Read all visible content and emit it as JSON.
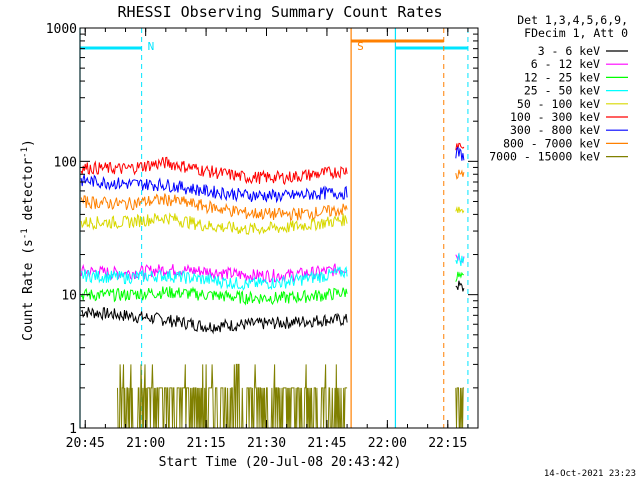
{
  "chart_data": {
    "type": "line",
    "title": "RHESSI Observing Summary Count Rates",
    "xlabel": "Start Time (20-Jul-08 20:43:42)",
    "ylabel": "Count Rate (s",
    "ylabel_sup1": "-1",
    "ylabel_mid": " detector",
    "ylabel_sup2": "-1",
    "ylabel_end": ")",
    "yscale": "log",
    "ylim": [
      1,
      1000
    ],
    "xlim": [
      "20:43:42",
      "22:22:30"
    ],
    "x_ticks": [
      "20:45",
      "21:00",
      "21:15",
      "21:30",
      "21:45",
      "22:00",
      "22:15"
    ],
    "y_ticks": [
      "1",
      "10",
      "100",
      "1000"
    ],
    "legend_header": [
      "Det 1,3,4,5,6,9,",
      "FDecim 1, Att 0"
    ],
    "legend_position": "right",
    "annotations": [
      {
        "label": "N",
        "color": "#00e5ff",
        "time": "20:59"
      },
      {
        "label": "S",
        "color": "#ff8000",
        "time": "21:51"
      }
    ],
    "night_intervals": [
      [
        "20:43:42",
        "20:59"
      ],
      [
        "22:02",
        "22:20"
      ]
    ],
    "saa_interval": [
      "21:51",
      "22:14"
    ],
    "series": [
      {
        "name": "3 - 6 keV",
        "color": "#000000",
        "segments": [
          {
            "x": [
              "20:44",
              "20:55",
              "21:05",
              "21:15",
              "21:25",
              "21:35",
              "21:45",
              "21:50"
            ],
            "y": [
              7.5,
              7,
              6.5,
              5.8,
              6,
              6.2,
              6.5,
              6.5
            ]
          },
          {
            "x": [
              "22:17",
              "22:19"
            ],
            "y": [
              12,
              11
            ]
          }
        ]
      },
      {
        "name": "6 - 12 keV",
        "color": "#ff00ff",
        "segments": [
          {
            "x": [
              "20:44",
              "20:55",
              "21:05",
              "21:15",
              "21:25",
              "21:35",
              "21:45",
              "21:50"
            ],
            "y": [
              15,
              14.5,
              15.5,
              15,
              14,
              14,
              15,
              16
            ]
          },
          {
            "x": [
              "22:17",
              "22:19"
            ],
            "y": [
              20,
              19
            ]
          }
        ]
      },
      {
        "name": "12 - 25 keV",
        "color": "#00ff00",
        "segments": [
          {
            "x": [
              "20:44",
              "20:55",
              "21:05",
              "21:15",
              "21:25",
              "21:35",
              "21:45",
              "21:50"
            ],
            "y": [
              10,
              10,
              10.5,
              10,
              9.5,
              9.5,
              10,
              10.5
            ]
          },
          {
            "x": [
              "22:17",
              "22:19"
            ],
            "y": [
              14,
              13
            ]
          }
        ]
      },
      {
        "name": "25 - 50 keV",
        "color": "#00ffff",
        "segments": [
          {
            "x": [
              "20:44",
              "20:55",
              "21:05",
              "21:15",
              "21:25",
              "21:35",
              "21:45",
              "21:50"
            ],
            "y": [
              14,
              13.5,
              14,
              13,
              12,
              12.5,
              14,
              15
            ]
          },
          {
            "x": [
              "22:17",
              "22:19"
            ],
            "y": [
              19,
              18
            ]
          }
        ]
      },
      {
        "name": "50 - 100 keV",
        "color": "#d8d800",
        "segments": [
          {
            "x": [
              "20:44",
              "20:55",
              "21:05",
              "21:15",
              "21:25",
              "21:35",
              "21:45",
              "21:50"
            ],
            "y": [
              35,
              35,
              38,
              33,
              31,
              32,
              35,
              37
            ]
          },
          {
            "x": [
              "22:17",
              "22:19"
            ],
            "y": [
              45,
              43
            ]
          }
        ]
      },
      {
        "name": "100 - 300 keV",
        "color": "#ff0000",
        "segments": [
          {
            "x": [
              "20:44",
              "20:55",
              "21:05",
              "21:15",
              "21:25",
              "21:35",
              "21:45",
              "21:50"
            ],
            "y": [
              90,
              88,
              98,
              85,
              76,
              76,
              82,
              86
            ]
          },
          {
            "x": [
              "22:17",
              "22:19"
            ],
            "y": [
              135,
              130
            ]
          }
        ]
      },
      {
        "name": "300 - 800 keV",
        "color": "#0000ff",
        "segments": [
          {
            "x": [
              "20:44",
              "20:55",
              "21:05",
              "21:15",
              "21:25",
              "21:35",
              "21:45",
              "21:50"
            ],
            "y": [
              72,
              68,
              67,
              60,
              56,
              55,
              58,
              58
            ]
          },
          {
            "x": [
              "22:17",
              "22:19"
            ],
            "y": [
              118,
              110
            ]
          }
        ]
      },
      {
        "name": "800 - 7000 keV",
        "color": "#ff8000",
        "segments": [
          {
            "x": [
              "20:44",
              "20:55",
              "21:05",
              "21:15",
              "21:25",
              "21:35",
              "21:45",
              "21:50"
            ],
            "y": [
              50,
              48,
              52,
              46,
              41,
              40,
              42,
              44
            ]
          },
          {
            "x": [
              "22:17",
              "22:19"
            ],
            "y": [
              80,
              78
            ]
          }
        ]
      },
      {
        "name": "7000 - 15000 keV",
        "color": "#808000",
        "segments": [
          {
            "x": [
              "20:53",
              "21:05",
              "21:20",
              "21:35",
              "21:50"
            ],
            "y": [
              1.5,
              1.8,
              1.5,
              1.6,
              1.5
            ]
          },
          {
            "x": [
              "22:17",
              "22:19"
            ],
            "y": [
              1.5,
              1.5
            ]
          }
        ]
      }
    ]
  },
  "footer": {
    "timestamp": "14-Oct-2021 23:23"
  }
}
